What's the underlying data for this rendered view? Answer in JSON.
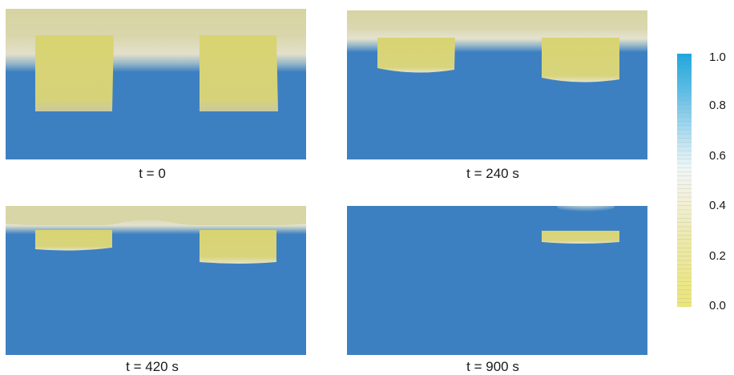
{
  "panels": [
    {
      "caption": "t = 0"
    },
    {
      "caption": "t = 240 s"
    },
    {
      "caption": "t = 420 s"
    },
    {
      "caption": "t = 900 s"
    }
  ],
  "colorbar": {
    "ticks": [
      "1.0",
      "0.8",
      "0.6",
      "0.4",
      "0.2",
      "0.0"
    ],
    "colors": {
      "max": "#1aa8e0",
      "high": "#8fd0ee",
      "mid": "#f2f5f0",
      "low_mid": "#e9e2a6",
      "min": "#ece676"
    }
  },
  "colors": {
    "background_field": "#3d80c1",
    "top_layer": "#d8d6a4",
    "filled_region": "#d9d471",
    "interface": "#ece9c8"
  }
}
